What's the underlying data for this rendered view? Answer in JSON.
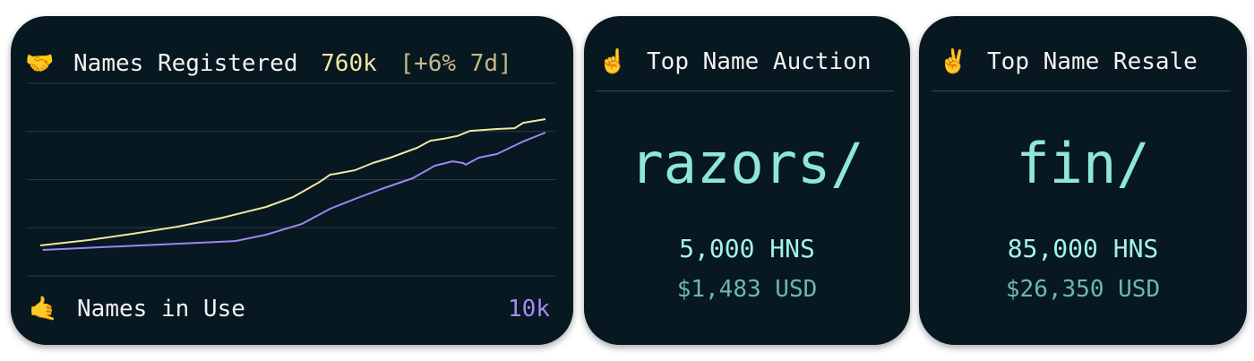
{
  "cards": [
    {
      "icon": "🤝",
      "title": "Names Registered",
      "value": "760k",
      "change": "[+6% 7d]",
      "footer_icon": "🤙",
      "footer_label": "Names in Use",
      "footer_value": "10k"
    },
    {
      "icon": "☝️",
      "title": "Top Name Auction",
      "name": "razors/",
      "price": "5,000 HNS",
      "usd": "$1,483 USD"
    },
    {
      "icon": "✌️",
      "title": "Top Name Resale",
      "name": "fin/",
      "price": "85,000 HNS",
      "usd": "$26,350 USD"
    }
  ],
  "chart_data": {
    "type": "line",
    "xlim": [
      0,
      100
    ],
    "ylim": [
      0,
      100
    ],
    "yticks": [
      25,
      50,
      75,
      100
    ],
    "grid": true,
    "series": [
      {
        "color": "#f3e6a2",
        "x": [
          0,
          9.6,
          18.4,
          27.2,
          36.0,
          44.7,
          50.0,
          55.3,
          57.4,
          58.4,
          62.3,
          65.8,
          69.3,
          74.6,
          77.2,
          79.8,
          82.5,
          85.1,
          90.4,
          93.9,
          95.6,
          100
        ],
        "values": [
          15.8,
          18.6,
          21.9,
          25.6,
          30.2,
          35.8,
          40.9,
          48.8,
          52.6,
          53.0,
          54.9,
          58.6,
          61.4,
          66.5,
          70.2,
          71.2,
          72.6,
          75.3,
          76.3,
          76.7,
          79.5,
          81.4
        ]
      },
      {
        "color": "#9c86f0",
        "x": [
          0.5,
          38.6,
          44.7,
          51.8,
          57.4,
          62.3,
          67.5,
          73.7,
          78.1,
          81.6,
          83.7,
          84.2,
          86.8,
          90.4,
          95.6,
          100
        ],
        "values": [
          13.5,
          18.1,
          21.4,
          27.0,
          34.9,
          40.0,
          45.1,
          50.7,
          57.2,
          59.5,
          58.6,
          57.7,
          61.4,
          63.3,
          69.8,
          74.4
        ]
      }
    ]
  }
}
